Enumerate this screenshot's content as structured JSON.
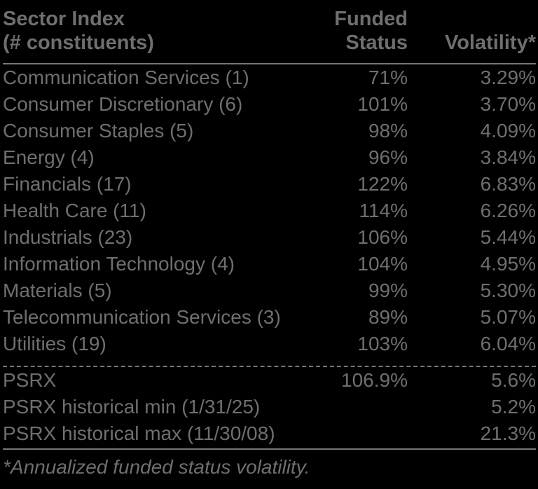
{
  "colors": {
    "background": "#000000",
    "text": "#6f6f6f",
    "rule": "#767676"
  },
  "header": {
    "sector_line1": "Sector Index",
    "sector_line2": "(# constituents)",
    "funded_line1": "Funded",
    "funded_line2": "Status",
    "volatility": "Volatility*"
  },
  "rows": [
    {
      "label": "Communication Services (1)",
      "funded": "71%",
      "volatility": "3.29%"
    },
    {
      "label": "Consumer Discretionary (6)",
      "funded": "101%",
      "volatility": "3.70%"
    },
    {
      "label": "Consumer Staples (5)",
      "funded": "98%",
      "volatility": "4.09%"
    },
    {
      "label": "Energy (4)",
      "funded": "96%",
      "volatility": "3.84%"
    },
    {
      "label": "Financials (17)",
      "funded": "122%",
      "volatility": "6.83%"
    },
    {
      "label": "Health Care (11)",
      "funded": "114%",
      "volatility": "6.26%"
    },
    {
      "label": "Industrials (23)",
      "funded": "106%",
      "volatility": "5.44%"
    },
    {
      "label": "Information Technology (4)",
      "funded": "104%",
      "volatility": "4.95%"
    },
    {
      "label": "Materials (5)",
      "funded": "99%",
      "volatility": "5.30%"
    },
    {
      "label": "Telecommunication Services (3)",
      "funded": "89%",
      "volatility": "5.07%"
    },
    {
      "label": "Utilities (19)",
      "funded": "103%",
      "volatility": "6.04%"
    }
  ],
  "summary": [
    {
      "label": "PSRX",
      "funded": "106.9%",
      "volatility": "5.6%"
    },
    {
      "label": "PSRX historical min (1/31/25)",
      "funded": "",
      "volatility": "5.2%"
    },
    {
      "label": "PSRX historical max (11/30/08)",
      "funded": "",
      "volatility": "21.3%"
    }
  ],
  "footnote": "*Annualized funded status volatility."
}
